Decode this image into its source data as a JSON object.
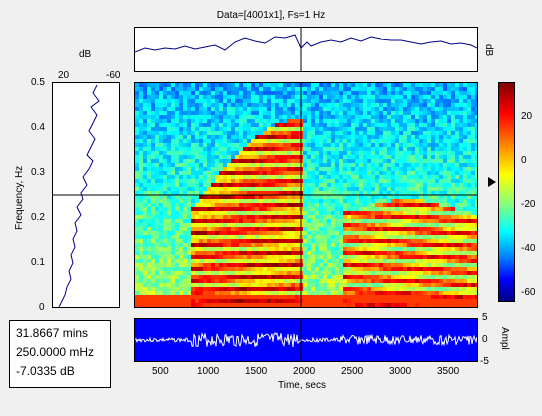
{
  "title": "Data=[4001x1], Fs=1 Hz",
  "top_panel": {
    "ylabel": "dB"
  },
  "left_panel": {
    "xlabel": "dB",
    "x_tick_left": "20",
    "x_tick_right": "-60",
    "ylabel": "Frequency, Hz"
  },
  "spectrogram": {
    "y_ticks": [
      "0.5",
      "0.4",
      "0.3",
      "0.2",
      "0.1",
      "0"
    ],
    "crosshair": {
      "time_secs": 1912,
      "freq_hz": 0.25
    }
  },
  "colorbar": {
    "ticks": [
      "20",
      "0",
      "-20",
      "-40",
      "-60"
    ],
    "ylabel": "dB"
  },
  "waveform_panel": {
    "y_ticks": [
      "5",
      "0",
      "-5"
    ],
    "ylabel": "Ampl",
    "x_ticks": [
      "1000",
      "1500",
      "2000",
      "2500",
      "3000",
      "3500",
      "500"
    ],
    "xlabel": "Time, secs"
  },
  "readout": {
    "time": "31.8667 mins",
    "freq": "250.0000 mHz",
    "level": "-7.0335 dB"
  },
  "colors": {
    "trace": "#00008b",
    "waveform_bg": "#0000ff",
    "waveform_fg": "#ffffff",
    "crosshair": "#000000"
  }
}
